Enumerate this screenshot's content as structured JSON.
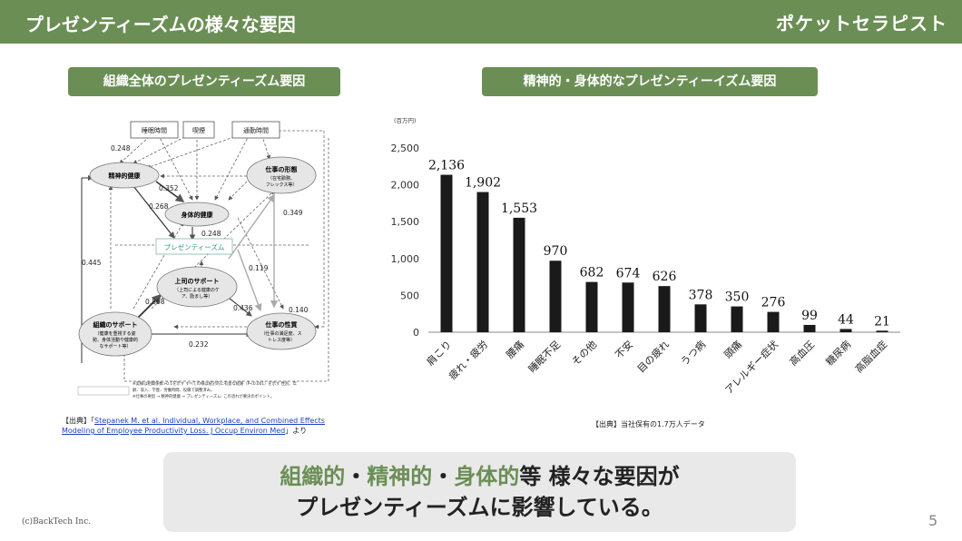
{
  "header": {
    "title": "プレゼンティーズムの様々な要因",
    "brand": "ポケットセラピスト"
  },
  "left_panel": {
    "pill": "組織全体のプレゼンティーズム要因",
    "nodes": {
      "sleep": "睡眠時間",
      "smoking": "喫煙",
      "commute": "通勤時間",
      "mental": "精神的健康",
      "physical": "身体的健康",
      "work_form": "仕事の形態",
      "work_form_sub1": "（在宅勤務、",
      "work_form_sub2": "フレックス等）",
      "presenteeism": "プレゼンティーズム",
      "boss": "上司のサポート",
      "boss_sub1": "（上司による健康のケ",
      "boss_sub2": "ア、励まし等）",
      "org": "組織のサポート",
      "org_sub1": "（健康を重視する姿",
      "org_sub2": "勢、身体活動や健康的",
      "org_sub3": "なサポート等）",
      "job": "仕事の性質",
      "job_sub1": "（仕事の満足度、ス",
      "job_sub2": "トレス度等）"
    },
    "coefficients": {
      "c1": "0.248",
      "c2": "0.352",
      "c3": "0.268",
      "c4": "0.248",
      "c5": "0.349",
      "c6": "0.445",
      "c7": "0.119",
      "c8": "0.868",
      "c9": "0.436",
      "c10": "0.140",
      "c11": "0.232"
    },
    "notes": {
      "n1": "※実線は相関係数>0.1を示す すべての線は統計的に有意な経路（P<0.001）を示す 性別、年",
      "n2": "齢、収入、学歴、労働時間、役職で調整済み。",
      "n3": "※仕事の要因 → 精神的健康 → プレゼンティーズム: この流れが要決のポイント。"
    },
    "source_prefix": "【出典】「",
    "source_link_1": "Stepanek M. et al. Individual, Workplace, and Combined Effects",
    "source_link_2": "Modeling of Employee Productivity Loss. J Occup Environ Med",
    "source_suffix": "」より"
  },
  "right_panel": {
    "pill": "精神的・身体的なプレゼンティーイズム要因",
    "source": "【出典】当社保有の1.7万人データ"
  },
  "chart_data": {
    "type": "bar",
    "ylabel": "(百万円)",
    "ylim": [
      0,
      2500
    ],
    "yticks": [
      "0",
      "500",
      "1,000",
      "1,500",
      "2,000",
      "2,500"
    ],
    "categories": [
      "肩こり",
      "疲れ・疲労",
      "腰痛",
      "睡眠不足",
      "その他",
      "不安",
      "目の疲れ",
      "うつ病",
      "頭痛",
      "アレルギー症状",
      "高血圧",
      "糖尿病",
      "高脂血症"
    ],
    "values": [
      2136,
      1902,
      1553,
      970,
      682,
      674,
      626,
      378,
      350,
      276,
      99,
      44,
      21
    ],
    "labels": [
      "2,136",
      "1,902",
      "1,553",
      "970",
      "682",
      "674",
      "626",
      "378",
      "350",
      "276",
      "99",
      "44",
      "21"
    ],
    "bar_color": "#1a1a1a"
  },
  "callout": {
    "g1": "組織的",
    "sep1": "・",
    "g2": "精神的",
    "sep2": "・",
    "g3": "身体的",
    "rest1": "等 様々な要因が",
    "line2": "プレゼンティーズムに影響している。"
  },
  "footer": {
    "copyright": "(c)BackTech Inc.",
    "page": "5"
  },
  "colors": {
    "accent": "#6b8e55",
    "callout_bg": "#e9e9e9",
    "presenteeism_text": "#2f9b7a"
  }
}
